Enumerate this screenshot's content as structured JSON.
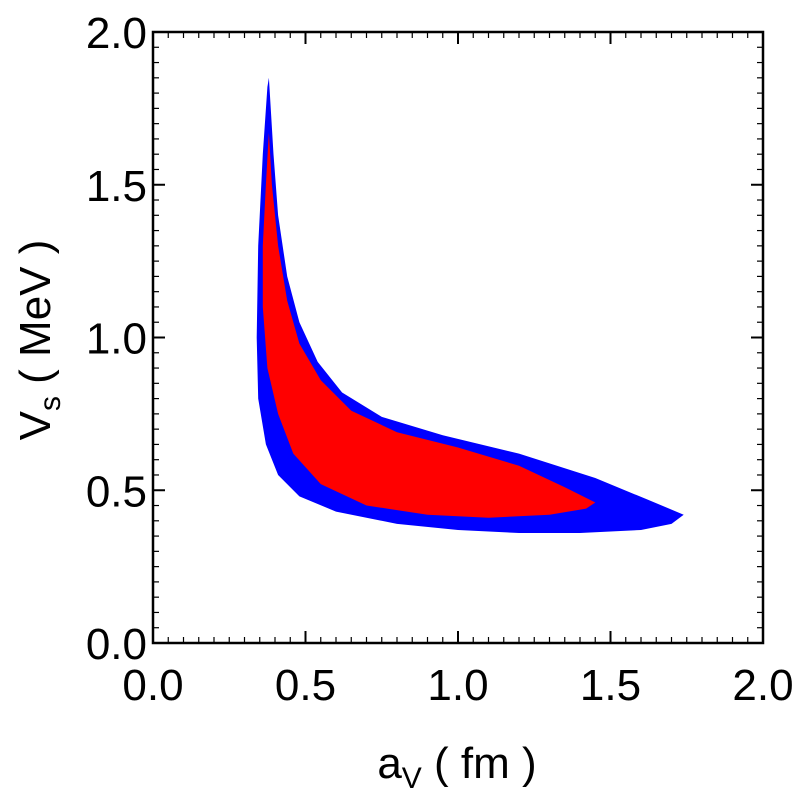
{
  "chart_data": {
    "type": "area",
    "xlabel": "a",
    "xlabel_sub": "V",
    "xlabel_unit": " ( fm )",
    "ylabel": "V",
    "ylabel_sub": "s",
    "ylabel_unit": " ( MeV )",
    "xlim": [
      0.0,
      2.0
    ],
    "ylim": [
      0.0,
      2.0
    ],
    "x_ticks": [
      "0.0",
      "0.5",
      "1.0",
      "1.5",
      "2.0"
    ],
    "y_ticks": [
      "0.0",
      "0.5",
      "1.0",
      "1.5",
      "2.0"
    ],
    "grid": false,
    "series": [
      {
        "color": "#0000ff",
        "points": [
          [
            0.38,
            1.85
          ],
          [
            0.395,
            1.6
          ],
          [
            0.41,
            1.4
          ],
          [
            0.44,
            1.2
          ],
          [
            0.48,
            1.05
          ],
          [
            0.54,
            0.92
          ],
          [
            0.62,
            0.82
          ],
          [
            0.75,
            0.74
          ],
          [
            0.95,
            0.68
          ],
          [
            1.2,
            0.62
          ],
          [
            1.45,
            0.54
          ],
          [
            1.62,
            0.47
          ],
          [
            1.74,
            0.42
          ],
          [
            1.7,
            0.39
          ],
          [
            1.6,
            0.37
          ],
          [
            1.4,
            0.36
          ],
          [
            1.2,
            0.36
          ],
          [
            1.0,
            0.37
          ],
          [
            0.8,
            0.39
          ],
          [
            0.6,
            0.43
          ],
          [
            0.48,
            0.48
          ],
          [
            0.41,
            0.55
          ],
          [
            0.37,
            0.65
          ],
          [
            0.345,
            0.8
          ],
          [
            0.34,
            1.0
          ],
          [
            0.345,
            1.3
          ],
          [
            0.36,
            1.6
          ],
          [
            0.375,
            1.82
          ]
        ]
      },
      {
        "color": "#ff0000",
        "points": [
          [
            0.38,
            1.67
          ],
          [
            0.39,
            1.5
          ],
          [
            0.41,
            1.3
          ],
          [
            0.44,
            1.12
          ],
          [
            0.48,
            0.98
          ],
          [
            0.55,
            0.86
          ],
          [
            0.65,
            0.76
          ],
          [
            0.8,
            0.69
          ],
          [
            1.0,
            0.64
          ],
          [
            1.2,
            0.58
          ],
          [
            1.35,
            0.51
          ],
          [
            1.45,
            0.46
          ],
          [
            1.42,
            0.44
          ],
          [
            1.3,
            0.42
          ],
          [
            1.1,
            0.41
          ],
          [
            0.9,
            0.42
          ],
          [
            0.7,
            0.45
          ],
          [
            0.55,
            0.52
          ],
          [
            0.46,
            0.62
          ],
          [
            0.41,
            0.75
          ],
          [
            0.375,
            0.9
          ],
          [
            0.36,
            1.1
          ],
          [
            0.36,
            1.3
          ],
          [
            0.37,
            1.5
          ],
          [
            0.378,
            1.64
          ]
        ]
      }
    ]
  }
}
